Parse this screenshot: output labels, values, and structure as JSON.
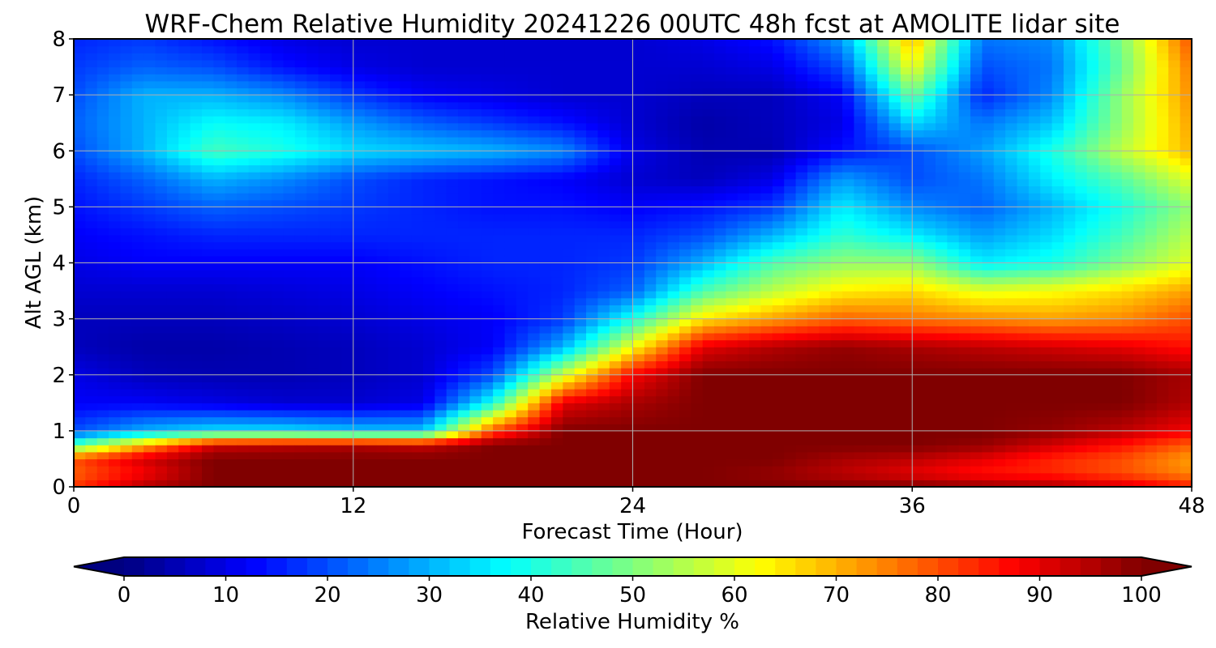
{
  "chart_data": {
    "type": "heatmap",
    "title": "WRF-Chem Relative Humidity 20241226 00UTC 48h fcst at AMOLITE lidar site",
    "xlabel": "Forecast Time (Hour)",
    "ylabel": "Alt AGL (km)",
    "xlim": [
      0,
      48
    ],
    "ylim": [
      0,
      8
    ],
    "x_ticks": [
      "0",
      "12",
      "24",
      "36",
      "48"
    ],
    "y_ticks": [
      "0",
      "1",
      "2",
      "3",
      "4",
      "5",
      "6",
      "7",
      "8"
    ],
    "grid": true,
    "colormap": "jet",
    "colorbar": {
      "label": "Relative Humidity %",
      "range": [
        0,
        100
      ],
      "ticks": [
        "0",
        "10",
        "20",
        "30",
        "40",
        "50",
        "60",
        "70",
        "80",
        "90",
        "100"
      ],
      "extend": "both",
      "orientation": "horizontal"
    },
    "x": [
      0,
      3,
      6,
      9,
      12,
      15,
      18,
      21,
      24,
      27,
      30,
      33,
      36,
      39,
      42,
      45,
      48
    ],
    "y": [
      0,
      0.25,
      0.5,
      0.75,
      1,
      1.5,
      2,
      2.5,
      3,
      3.5,
      4,
      4.5,
      5,
      5.5,
      6,
      6.5,
      7,
      7.5,
      8
    ],
    "values": [
      [
        82,
        95,
        100,
        100,
        100,
        100,
        100,
        100,
        100,
        100,
        100,
        100,
        100,
        98,
        96,
        92,
        85
      ],
      [
        78,
        88,
        100,
        100,
        100,
        100,
        100,
        100,
        100,
        100,
        98,
        94,
        90,
        86,
        84,
        80,
        74
      ],
      [
        80,
        92,
        100,
        100,
        100,
        100,
        100,
        100,
        100,
        100,
        100,
        96,
        94,
        90,
        84,
        80,
        72
      ],
      [
        45,
        70,
        92,
        94,
        95,
        93,
        100,
        100,
        100,
        100,
        100,
        100,
        100,
        98,
        92,
        86,
        78
      ],
      [
        20,
        30,
        35,
        35,
        32,
        32,
        80,
        100,
        100,
        100,
        100,
        100,
        100,
        100,
        98,
        94,
        88
      ],
      [
        12,
        12,
        10,
        8,
        8,
        10,
        40,
        90,
        96,
        100,
        100,
        100,
        100,
        100,
        100,
        100,
        95
      ],
      [
        10,
        6,
        5,
        5,
        6,
        8,
        20,
        58,
        88,
        100,
        100,
        100,
        100,
        100,
        100,
        100,
        96
      ],
      [
        6,
        4,
        4,
        5,
        6,
        8,
        12,
        30,
        62,
        90,
        95,
        98,
        96,
        94,
        92,
        90,
        86
      ],
      [
        6,
        6,
        6,
        7,
        8,
        10,
        12,
        18,
        40,
        65,
        72,
        78,
        76,
        74,
        72,
        74,
        80
      ],
      [
        8,
        8,
        8,
        9,
        10,
        12,
        14,
        16,
        22,
        45,
        56,
        64,
        66,
        60,
        62,
        66,
        72
      ],
      [
        10,
        12,
        12,
        12,
        12,
        14,
        16,
        16,
        18,
        30,
        45,
        52,
        52,
        36,
        40,
        50,
        60
      ],
      [
        12,
        14,
        16,
        16,
        16,
        16,
        16,
        16,
        16,
        20,
        30,
        42,
        36,
        28,
        34,
        44,
        56
      ],
      [
        14,
        18,
        22,
        20,
        18,
        16,
        14,
        14,
        12,
        14,
        18,
        36,
        26,
        22,
        30,
        40,
        52
      ],
      [
        16,
        22,
        30,
        26,
        20,
        16,
        14,
        12,
        8,
        6,
        10,
        28,
        20,
        24,
        36,
        46,
        60
      ],
      [
        20,
        30,
        44,
        40,
        34,
        32,
        30,
        26,
        10,
        5,
        5,
        14,
        20,
        28,
        40,
        56,
        70
      ],
      [
        22,
        30,
        38,
        36,
        28,
        22,
        18,
        14,
        8,
        4,
        6,
        10,
        34,
        24,
        32,
        52,
        72
      ],
      [
        20,
        30,
        30,
        26,
        18,
        12,
        10,
        8,
        8,
        6,
        6,
        12,
        48,
        16,
        26,
        52,
        74
      ],
      [
        18,
        22,
        20,
        14,
        10,
        8,
        8,
        8,
        8,
        8,
        10,
        20,
        62,
        20,
        24,
        48,
        76
      ],
      [
        16,
        18,
        14,
        10,
        8,
        8,
        8,
        8,
        8,
        10,
        14,
        28,
        70,
        24,
        26,
        50,
        80
      ]
    ]
  }
}
